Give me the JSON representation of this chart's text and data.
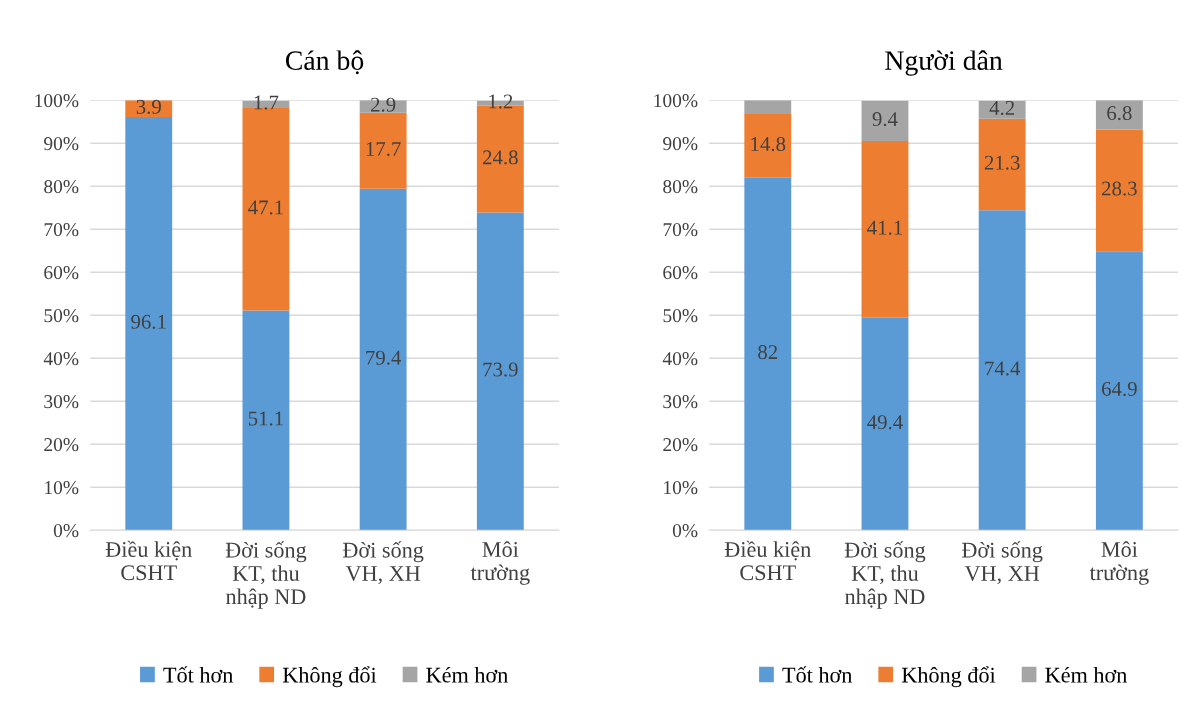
{
  "chart_data": [
    {
      "type": "bar",
      "title": "Cán bộ",
      "stacked": true,
      "categories": [
        "Điều kiện\nCSHT",
        "Đời sống\nKT, thu\nnhập ND",
        "Đời sống\nVH, XH",
        "Môi\ntrường"
      ],
      "series": [
        {
          "name": "Tốt hơn",
          "color": "#5b9bd5",
          "values": [
            96.1,
            51.1,
            79.4,
            73.9
          ],
          "value_labels": [
            "96.1",
            "51.1",
            "79.4",
            "73.9"
          ]
        },
        {
          "name": "Không đổi",
          "color": "#ed7d31",
          "values": [
            3.9,
            47.1,
            17.7,
            24.8
          ],
          "value_labels": [
            "3.9",
            "47.1",
            "17.7",
            "24.8"
          ]
        },
        {
          "name": "Kém hơn",
          "color": "#a5a5a5",
          "values": [
            0,
            1.7,
            2.9,
            1.2
          ],
          "value_labels": [
            null,
            "1.7",
            "2.9",
            "1.2"
          ]
        }
      ],
      "ylim": [
        0,
        100
      ],
      "yticks": [
        {
          "value": 0,
          "label": "0%"
        },
        {
          "value": 10,
          "label": "10%"
        },
        {
          "value": 20,
          "label": "20%"
        },
        {
          "value": 30,
          "label": "30%"
        },
        {
          "value": 40,
          "label": "40%"
        },
        {
          "value": 50,
          "label": "50%"
        },
        {
          "value": 60,
          "label": "60%"
        },
        {
          "value": 70,
          "label": "70%"
        },
        {
          "value": 80,
          "label": "80%"
        },
        {
          "value": 90,
          "label": "90%"
        },
        {
          "value": 100,
          "label": "100%"
        }
      ],
      "grid": "y",
      "legend": "bottom"
    },
    {
      "type": "bar",
      "title": "Người dân",
      "stacked": true,
      "categories": [
        "Điều kiện\nCSHT",
        "Đời sống\nKT, thu\nnhập ND",
        "Đời sống\nVH, XH",
        "Môi\ntrường"
      ],
      "series": [
        {
          "name": "Tốt hơn",
          "color": "#5b9bd5",
          "values": [
            82,
            49.4,
            74.4,
            64.9
          ],
          "value_labels": [
            "82",
            "49.4",
            "74.4",
            "64.9"
          ]
        },
        {
          "name": "Không đổi",
          "color": "#ed7d31",
          "values": [
            14.8,
            41.1,
            21.3,
            28.3
          ],
          "value_labels": [
            "14.8",
            "41.1",
            "21.3",
            "28.3"
          ]
        },
        {
          "name": "Kém hơn",
          "color": "#a5a5a5",
          "values": [
            3.2,
            9.4,
            4.2,
            6.8
          ],
          "value_labels": [
            null,
            "9.4",
            "4.2",
            "6.8"
          ]
        }
      ],
      "ylim": [
        0,
        100
      ],
      "yticks": [
        {
          "value": 0,
          "label": "0%"
        },
        {
          "value": 10,
          "label": "10%"
        },
        {
          "value": 20,
          "label": "20%"
        },
        {
          "value": 30,
          "label": "30%"
        },
        {
          "value": 40,
          "label": "40%"
        },
        {
          "value": 50,
          "label": "50%"
        },
        {
          "value": 60,
          "label": "60%"
        },
        {
          "value": 70,
          "label": "70%"
        },
        {
          "value": 80,
          "label": "80%"
        },
        {
          "value": 90,
          "label": "90%"
        },
        {
          "value": 100,
          "label": "100%"
        }
      ],
      "grid": "y",
      "legend": "bottom"
    }
  ]
}
